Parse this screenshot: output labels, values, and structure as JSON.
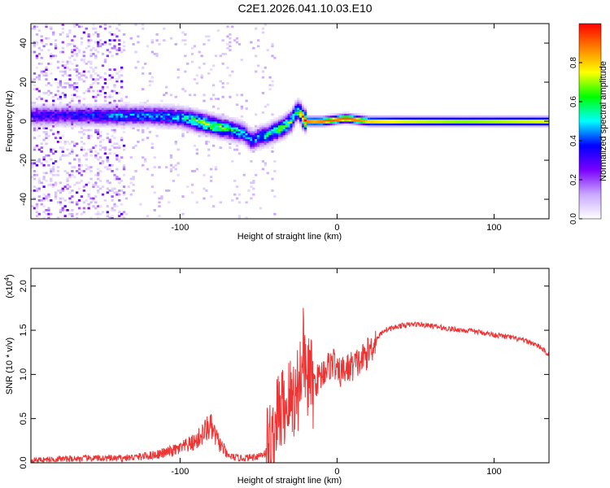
{
  "title": "C2E1.2026.041.10.03.E10",
  "chart_data": [
    {
      "type": "heatmap",
      "xlabel": "Height of straight line (km)",
      "ylabel": "Frequency (Hz)",
      "xlim": [
        -195,
        135
      ],
      "ylim": [
        -50,
        50
      ],
      "x_ticks": [
        -100,
        0,
        100
      ],
      "y_ticks": [
        -40,
        -20,
        0,
        20,
        40
      ],
      "colorbar": {
        "label": "Normalized spectral amplitude",
        "range": [
          0,
          1
        ],
        "ticks": [
          0.0,
          0.2,
          0.4,
          0.6,
          0.8
        ],
        "colors": [
          "#ffffff",
          "#c9a8ff",
          "#7a00ff",
          "#0000ff",
          "#00ffff",
          "#00ff00",
          "#ffff00",
          "#ff8000",
          "#ff0000"
        ]
      },
      "ridge": {
        "x": [
          -195,
          -160,
          -140,
          -120,
          -100,
          -90,
          -80,
          -70,
          -60,
          -55,
          -50,
          -45,
          -40,
          -35,
          -30,
          -28,
          -26,
          -24,
          -22,
          -20,
          -15,
          -10,
          -5,
          0,
          5,
          10,
          15,
          20,
          40,
          80,
          135
        ],
        "freq": [
          3,
          3,
          3,
          3,
          2,
          0,
          -2,
          -4,
          -6,
          -10,
          -8,
          -7,
          -5,
          -3,
          0,
          3,
          6,
          4,
          1,
          0,
          0,
          0,
          0.5,
          1,
          1.5,
          1,
          0.5,
          0,
          0,
          0,
          0
        ],
        "peak_amplitude": [
          0.3,
          0.35,
          0.4,
          0.4,
          0.45,
          0.6,
          0.65,
          0.55,
          0.45,
          0.4,
          0.45,
          0.5,
          0.55,
          0.6,
          0.6,
          0.5,
          0.55,
          0.7,
          0.9,
          0.95,
          0.9,
          0.95,
          0.9,
          0.95,
          0.9,
          0.95,
          0.85,
          0.85,
          0.8,
          0.75,
          0.8
        ]
      }
    },
    {
      "type": "line",
      "xlabel": "Height of straight line (km)",
      "ylabel": "SNR (10 * v/v)",
      "y_multiplier": "(x10",
      "y_multiplier_exp": "4",
      "xlim": [
        -195,
        135
      ],
      "ylim": [
        0,
        2.2
      ],
      "x_ticks": [
        -100,
        0,
        100
      ],
      "y_ticks": [
        "0.0",
        "0.5",
        "1.0",
        "1.5",
        "2.0"
      ],
      "series": [
        {
          "name": "SNR",
          "color": "#ee3333",
          "x": [
            -195,
            -180,
            -160,
            -140,
            -130,
            -120,
            -110,
            -100,
            -95,
            -90,
            -87,
            -84,
            -81,
            -78,
            -75,
            -72,
            -70,
            -65,
            -60,
            -55,
            -50,
            -45,
            -42,
            -40,
            -38,
            -35,
            -32,
            -30,
            -28,
            -26,
            -24,
            -22,
            -20,
            -18,
            -15,
            -12,
            -10,
            -8,
            -5,
            -2,
            0,
            5,
            10,
            15,
            20,
            25,
            30,
            40,
            50,
            60,
            70,
            80,
            90,
            100,
            110,
            120,
            125,
            130,
            135
          ],
          "y": [
            0.03,
            0.04,
            0.05,
            0.05,
            0.06,
            0.08,
            0.11,
            0.16,
            0.2,
            0.24,
            0.3,
            0.36,
            0.42,
            0.32,
            0.22,
            0.15,
            0.08,
            0.06,
            0.05,
            0.06,
            0.08,
            0.12,
            0.22,
            0.35,
            0.5,
            0.6,
            0.65,
            0.7,
            0.75,
            0.8,
            0.9,
            1.2,
            1.0,
            0.95,
            0.9,
            0.95,
            1.0,
            1.05,
            1.1,
            1.15,
            1.0,
            1.05,
            1.1,
            1.15,
            1.25,
            1.4,
            1.5,
            1.55,
            1.57,
            1.55,
            1.52,
            1.5,
            1.48,
            1.45,
            1.42,
            1.38,
            1.35,
            1.3,
            1.22
          ]
        }
      ]
    }
  ]
}
